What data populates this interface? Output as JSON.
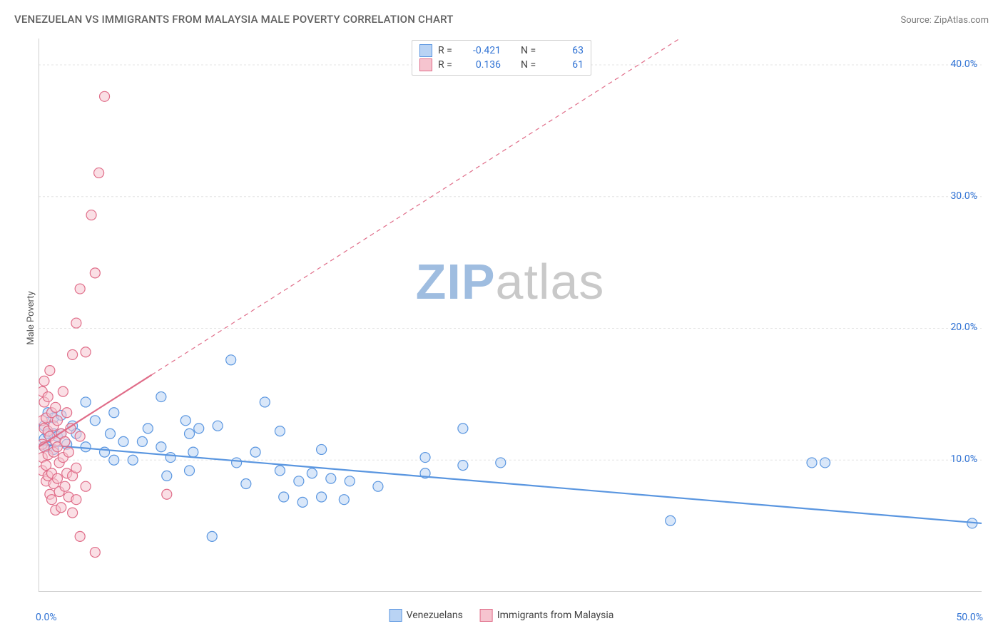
{
  "title": "VENEZUELAN VS IMMIGRANTS FROM MALAYSIA MALE POVERTY CORRELATION CHART",
  "source": "Source: ZipAtlas.com",
  "ylabel": "Male Poverty",
  "watermark": {
    "zip": "ZIP",
    "atlas": "atlas",
    "zip_color": "#9fbde0",
    "atlas_color": "#c9c9c9"
  },
  "chart": {
    "type": "scatter",
    "xlim": [
      0,
      50
    ],
    "ylim": [
      0,
      42
    ],
    "x_tick_labels": {
      "left": "0.0%",
      "right": "50.0%"
    },
    "y_ticks": [
      10,
      20,
      30,
      40
    ],
    "y_tick_labels": [
      "10.0%",
      "20.0%",
      "30.0%",
      "40.0%"
    ],
    "x_minor_ticks": [
      0,
      5,
      10,
      15,
      20,
      25,
      30,
      35,
      40,
      45,
      50
    ],
    "tick_color": "#2f72d4",
    "axis_color": "#bfbfbf",
    "grid_color": "#e4e4e4",
    "marker_radius": 7,
    "marker_stroke_width": 1.2,
    "trend_stroke_width": 2.2,
    "series": [
      {
        "id": "venezuelans",
        "name": "Venezuelans",
        "fill": "#b9d3f4",
        "stroke": "#5a96e0",
        "r": -0.421,
        "n": 63,
        "trend": {
          "x1": 0,
          "y1": 11.2,
          "x2": 50,
          "y2": 5.2,
          "dash": false
        },
        "points": [
          [
            0.3,
            11.0
          ],
          [
            0.3,
            11.6
          ],
          [
            0.3,
            12.6
          ],
          [
            0.5,
            13.6
          ],
          [
            0.5,
            12.0
          ],
          [
            0.5,
            11.0
          ],
          [
            0.8,
            13.2
          ],
          [
            0.8,
            12.0
          ],
          [
            0.8,
            10.8
          ],
          [
            1.0,
            11.8
          ],
          [
            1.2,
            13.4
          ],
          [
            1.2,
            12.0
          ],
          [
            1.5,
            11.2
          ],
          [
            1.8,
            12.6
          ],
          [
            2.0,
            12.0
          ],
          [
            2.5,
            14.4
          ],
          [
            2.5,
            11.0
          ],
          [
            3.0,
            13.0
          ],
          [
            3.5,
            10.6
          ],
          [
            3.8,
            12.0
          ],
          [
            4.0,
            10.0
          ],
          [
            4.0,
            13.6
          ],
          [
            4.5,
            11.4
          ],
          [
            5.0,
            10.0
          ],
          [
            5.5,
            11.4
          ],
          [
            5.8,
            12.4
          ],
          [
            6.5,
            14.8
          ],
          [
            6.5,
            11.0
          ],
          [
            6.8,
            8.8
          ],
          [
            7.0,
            10.2
          ],
          [
            7.8,
            13.0
          ],
          [
            8.0,
            12.0
          ],
          [
            8.2,
            10.6
          ],
          [
            8.0,
            9.2
          ],
          [
            8.5,
            12.4
          ],
          [
            9.2,
            4.2
          ],
          [
            9.5,
            12.6
          ],
          [
            10.2,
            17.6
          ],
          [
            10.5,
            9.8
          ],
          [
            11.0,
            8.2
          ],
          [
            11.5,
            10.6
          ],
          [
            12.0,
            14.4
          ],
          [
            12.8,
            12.2
          ],
          [
            12.8,
            9.2
          ],
          [
            13.0,
            7.2
          ],
          [
            13.8,
            8.4
          ],
          [
            14.0,
            6.8
          ],
          [
            14.5,
            9.0
          ],
          [
            15.0,
            10.8
          ],
          [
            15.0,
            7.2
          ],
          [
            15.5,
            8.6
          ],
          [
            16.2,
            7.0
          ],
          [
            16.5,
            8.4
          ],
          [
            18.0,
            8.0
          ],
          [
            20.5,
            9.0
          ],
          [
            20.5,
            10.2
          ],
          [
            22.5,
            9.6
          ],
          [
            22.5,
            12.4
          ],
          [
            24.5,
            9.8
          ],
          [
            33.5,
            5.4
          ],
          [
            41.0,
            9.8
          ],
          [
            41.7,
            9.8
          ],
          [
            49.5,
            5.2
          ]
        ]
      },
      {
        "id": "malaysia",
        "name": "Immigrants from Malaysia",
        "fill": "#f6c4cf",
        "stroke": "#e06d89",
        "r": 0.136,
        "n": 61,
        "trend": {
          "x1": 0,
          "y1": 11.0,
          "x2": 34,
          "y2": 42,
          "dash_from_x": 6
        },
        "points": [
          [
            0.2,
            11.2
          ],
          [
            0.2,
            10.2
          ],
          [
            0.2,
            9.2
          ],
          [
            0.2,
            13.0
          ],
          [
            0.2,
            15.2
          ],
          [
            0.3,
            14.4
          ],
          [
            0.3,
            16.0
          ],
          [
            0.3,
            12.4
          ],
          [
            0.3,
            11.0
          ],
          [
            0.4,
            9.6
          ],
          [
            0.4,
            8.4
          ],
          [
            0.4,
            13.2
          ],
          [
            0.5,
            14.8
          ],
          [
            0.5,
            12.2
          ],
          [
            0.5,
            10.4
          ],
          [
            0.5,
            8.8
          ],
          [
            0.6,
            7.4
          ],
          [
            0.6,
            11.8
          ],
          [
            0.6,
            16.8
          ],
          [
            0.7,
            13.6
          ],
          [
            0.7,
            9.0
          ],
          [
            0.7,
            7.0
          ],
          [
            0.8,
            12.6
          ],
          [
            0.8,
            10.6
          ],
          [
            0.8,
            8.2
          ],
          [
            0.9,
            11.4
          ],
          [
            0.9,
            14.0
          ],
          [
            0.9,
            6.2
          ],
          [
            1.0,
            13.0
          ],
          [
            1.0,
            11.0
          ],
          [
            1.0,
            8.6
          ],
          [
            1.1,
            9.8
          ],
          [
            1.1,
            7.6
          ],
          [
            1.2,
            12.0
          ],
          [
            1.2,
            6.4
          ],
          [
            1.3,
            10.2
          ],
          [
            1.3,
            15.2
          ],
          [
            1.4,
            8.0
          ],
          [
            1.4,
            11.4
          ],
          [
            1.5,
            9.0
          ],
          [
            1.5,
            13.6
          ],
          [
            1.6,
            7.2
          ],
          [
            1.6,
            10.6
          ],
          [
            1.7,
            12.4
          ],
          [
            1.8,
            8.8
          ],
          [
            1.8,
            18.0
          ],
          [
            1.8,
            6.0
          ],
          [
            2.0,
            20.4
          ],
          [
            2.0,
            9.4
          ],
          [
            2.0,
            7.0
          ],
          [
            2.2,
            11.8
          ],
          [
            2.2,
            23.0
          ],
          [
            2.2,
            4.2
          ],
          [
            2.5,
            18.2
          ],
          [
            2.5,
            8.0
          ],
          [
            2.8,
            28.6
          ],
          [
            3.0,
            24.2
          ],
          [
            3.0,
            3.0
          ],
          [
            3.2,
            31.8
          ],
          [
            3.5,
            37.6
          ],
          [
            6.8,
            7.4
          ]
        ]
      }
    ],
    "stats_label_color": "#2f72d4"
  }
}
